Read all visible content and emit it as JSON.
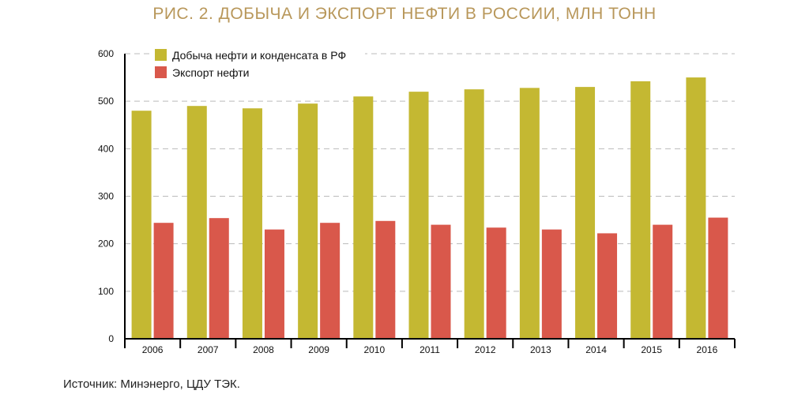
{
  "title": "РИС. 2. ДОБЫЧА И ЭКСПОРТ НЕФТИ В РОССИИ, МЛН ТОНН",
  "source": "Источник: Минэнерго, ЦДУ ТЭК.",
  "colors": {
    "title": "#b8975a",
    "production": "#c4b832",
    "export": "#d9584b",
    "grid": "#bbbbbb",
    "axis": "#000000"
  },
  "chart_data": {
    "type": "bar",
    "categories": [
      "2006",
      "2007",
      "2008",
      "2009",
      "2010",
      "2011",
      "2012",
      "2013",
      "2014",
      "2015",
      "2016"
    ],
    "series": [
      {
        "name": "Добыча нефти и конденсата в РФ",
        "values": [
          480,
          490,
          485,
          495,
          510,
          520,
          525,
          528,
          530,
          542,
          550
        ]
      },
      {
        "name": "Экспорт нефти",
        "values": [
          244,
          254,
          230,
          244,
          248,
          240,
          234,
          230,
          222,
          240,
          255
        ]
      }
    ],
    "ylim": [
      0,
      600
    ],
    "yticks": [
      "0",
      "100",
      "200",
      "300",
      "400",
      "500",
      "600"
    ],
    "grid": true,
    "legend_position": "top-left"
  }
}
